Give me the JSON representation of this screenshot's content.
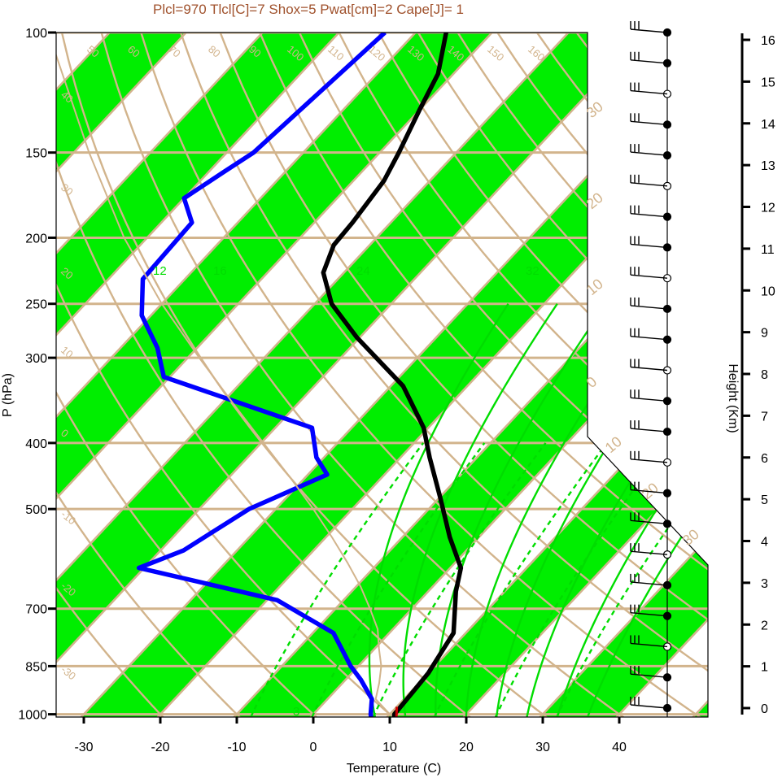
{
  "chart_data": {
    "type": "line",
    "title": "Plcl=970 Tlcl[C]=7 Shox=5 Pwat[cm]=2 Cape[J]= 1",
    "xlabel": "Temperature (C)",
    "ylabel": "P (hPa)",
    "y2label": "Height (Km)",
    "xlim": [
      -34,
      36
    ],
    "ylim": [
      1050,
      100
    ],
    "y_scale": "log",
    "x_ticks": [
      -30,
      -20,
      -10,
      0,
      10,
      20,
      30,
      40
    ],
    "x_tick_labels": [
      "-30",
      "-20",
      "-10",
      "0",
      "10",
      "20",
      "30",
      "40"
    ],
    "p_ticks": [
      100,
      150,
      200,
      250,
      300,
      400,
      500,
      700,
      850,
      1000
    ],
    "p_tick_labels": [
      "100",
      "150",
      "200",
      "250",
      "300",
      "400",
      "500",
      "700",
      "850",
      "1000"
    ],
    "height_ticks": [
      0,
      1,
      2,
      3,
      4,
      5,
      6,
      7,
      8,
      9,
      10,
      11,
      12,
      13,
      14,
      15,
      16
    ],
    "height_tick_labels": [
      "0",
      "1",
      "2",
      "3",
      "4",
      "5",
      "6",
      "7",
      "8",
      "9",
      "10",
      "11",
      "12",
      "13",
      "14",
      "15",
      "16"
    ],
    "series": [
      {
        "id": "temperature",
        "color": "#000000",
        "p": [
          100,
          115,
          130,
          150,
          165,
          190,
          205,
          225,
          250,
          280,
          330,
          380,
          420,
          480,
          550,
          610,
          660,
          760,
          800,
          870,
          950,
          1000,
          1012
        ],
        "t": [
          -66,
          -62,
          -60,
          -57.5,
          -56,
          -55,
          -54.7,
          -52.7,
          -47.8,
          -40.4,
          -28.4,
          -20.6,
          -16.2,
          -10,
          -3.8,
          1.4,
          3.6,
          8.4,
          9,
          10,
          10.4,
          10.6,
          11
        ]
      },
      {
        "id": "dewpoint",
        "color": "#0000ff",
        "p": [
          100,
          150,
          160,
          175,
          190,
          230,
          260,
          290,
          320,
          380,
          420,
          445,
          500,
          575,
          610,
          680,
          760,
          850,
          890,
          950,
          1000,
          1012
        ],
        "t": [
          -74,
          -76.5,
          -78,
          -80,
          -76,
          -75.5,
          -71.2,
          -65.2,
          -60.8,
          -35.2,
          -31,
          -27.5,
          -33.5,
          -37,
          -40.7,
          -18.7,
          -7.3,
          -1,
          2,
          5.8,
          7.5,
          8
        ]
      },
      {
        "id": "parcel",
        "color": "#d2b48c",
        "p": [
          1000,
          950,
          900,
          850,
          800,
          750,
          700,
          650,
          600,
          550,
          500,
          450,
          400,
          350,
          300,
          250,
          200,
          150,
          100
        ],
        "t": [
          10,
          6.3,
          4.8,
          3,
          0.5,
          -2,
          -5.5,
          -9.4,
          -14,
          -19.2,
          -25.1,
          -31.9,
          -39.7,
          -48.5,
          -58.5,
          -70,
          -83,
          -98,
          -118
        ]
      },
      {
        "id": "surface-red",
        "color": "#cc0000",
        "p": [
          975,
          1012
        ],
        "t": [
          10,
          11.3
        ]
      }
    ],
    "isotherm_labels": [
      "50",
      "60",
      "70",
      "80",
      "90",
      "100",
      "110",
      "120",
      "130",
      "140",
      "150",
      "160"
    ],
    "dry_adiabat_labels": [
      "40",
      "30",
      "20",
      "10",
      "0",
      "-10",
      "-20",
      "-30"
    ],
    "right_edge_labels": [
      "30",
      "20",
      "10",
      "0",
      "10",
      "20",
      "30"
    ],
    "mixing_ratio_labels": [
      "12",
      "16",
      "24",
      "32"
    ],
    "dashed_labels": [
      "3"
    ],
    "wind_barbs": {
      "levels": 23
    }
  }
}
